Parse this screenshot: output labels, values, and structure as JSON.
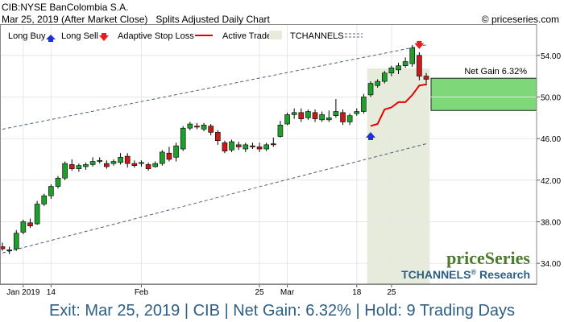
{
  "header": {
    "symbol_line": "CIB:NYSE BanColombia S.A.",
    "date_line": "Mar 25, 2019 (After Market Close)",
    "chart_kind": "Splits Adjusted Daily Chart",
    "copyright": "© priceseries.com"
  },
  "legend": {
    "long_buy": "Long Buy",
    "long_sell": "Long Sell",
    "adaptive_stop": "Adaptive Stop Loss",
    "active_trade": "Active Trade",
    "tchannels": "TCHANNELS"
  },
  "colors": {
    "up": "#1e9e2a",
    "down": "#c81a1a",
    "stop": "#e60000",
    "buy_arrow": "#1f2fd6",
    "sell_arrow": "#e02020",
    "trade_shade": "#e7ebdc",
    "gain_box": "#7ed87a",
    "channel": "#50607a",
    "footer": "#2d5f85",
    "brand_green": "#4a7c2c"
  },
  "gain_label": "Net Gain 6.32%",
  "watermark": {
    "brand": "priceSeries",
    "research_prefix": "TCHANNELS",
    "reg": "®",
    "research_suffix": " Research"
  },
  "footer": {
    "text": "Exit: Mar 25, 2019 | CIB | Net Gain: 6.32% | Hold: 9 Trading Days"
  },
  "chart_data": {
    "type": "candlestick",
    "ylim": [
      32.0,
      57.0
    ],
    "y_ticks": [
      34.0,
      38.0,
      42.0,
      46.0,
      50.0,
      54.0
    ],
    "y_tick_labels": [
      "34.00",
      "38.00",
      "42.00",
      "46.00",
      "50.00",
      "54.00"
    ],
    "x_ticks": [
      {
        "label": "Jan 2019",
        "index": 3
      },
      {
        "label": "14",
        "index": 7
      },
      {
        "label": "Feb",
        "index": 20
      },
      {
        "label": "25",
        "index": 37
      },
      {
        "label": "Mar",
        "index": 41
      },
      {
        "label": "18",
        "index": 51
      },
      {
        "label": "25",
        "index": 56
      }
    ],
    "candles": [
      {
        "o": 35.6,
        "h": 36.0,
        "l": 35.2,
        "c": 35.4
      },
      {
        "o": 35.2,
        "h": 35.6,
        "l": 34.9,
        "c": 35.3
      },
      {
        "o": 35.4,
        "h": 37.2,
        "l": 35.2,
        "c": 36.9
      },
      {
        "o": 37.0,
        "h": 38.2,
        "l": 36.8,
        "c": 38.0
      },
      {
        "o": 37.9,
        "h": 38.3,
        "l": 37.4,
        "c": 37.6
      },
      {
        "o": 37.8,
        "h": 40.0,
        "l": 37.7,
        "c": 39.7
      },
      {
        "o": 39.7,
        "h": 40.7,
        "l": 39.5,
        "c": 40.5
      },
      {
        "o": 40.5,
        "h": 41.6,
        "l": 40.2,
        "c": 41.4
      },
      {
        "o": 41.4,
        "h": 42.4,
        "l": 41.2,
        "c": 42.2
      },
      {
        "o": 42.2,
        "h": 43.8,
        "l": 42.0,
        "c": 43.6
      },
      {
        "o": 43.5,
        "h": 44.0,
        "l": 42.9,
        "c": 43.1
      },
      {
        "o": 43.1,
        "h": 43.6,
        "l": 42.8,
        "c": 43.4
      },
      {
        "o": 43.3,
        "h": 43.7,
        "l": 43.0,
        "c": 43.5
      },
      {
        "o": 43.5,
        "h": 44.2,
        "l": 43.3,
        "c": 43.8
      },
      {
        "o": 43.8,
        "h": 44.2,
        "l": 43.6,
        "c": 43.9
      },
      {
        "o": 43.6,
        "h": 43.9,
        "l": 43.1,
        "c": 43.3
      },
      {
        "o": 43.6,
        "h": 44.0,
        "l": 43.4,
        "c": 43.8
      },
      {
        "o": 43.7,
        "h": 44.6,
        "l": 43.5,
        "c": 44.2
      },
      {
        "o": 44.3,
        "h": 44.6,
        "l": 43.2,
        "c": 43.6
      },
      {
        "o": 43.6,
        "h": 43.9,
        "l": 43.2,
        "c": 43.4
      },
      {
        "o": 43.6,
        "h": 43.9,
        "l": 43.3,
        "c": 43.7
      },
      {
        "o": 43.5,
        "h": 43.7,
        "l": 42.9,
        "c": 43.1
      },
      {
        "o": 43.3,
        "h": 43.8,
        "l": 43.2,
        "c": 43.6
      },
      {
        "o": 43.6,
        "h": 44.9,
        "l": 43.4,
        "c": 44.7
      },
      {
        "o": 44.6,
        "h": 45.2,
        "l": 43.8,
        "c": 44.0
      },
      {
        "o": 44.2,
        "h": 45.6,
        "l": 43.8,
        "c": 45.3
      },
      {
        "o": 45.0,
        "h": 47.2,
        "l": 44.8,
        "c": 47.0
      },
      {
        "o": 47.0,
        "h": 47.6,
        "l": 46.8,
        "c": 47.4
      },
      {
        "o": 47.2,
        "h": 47.5,
        "l": 46.9,
        "c": 47.1
      },
      {
        "o": 46.9,
        "h": 47.5,
        "l": 46.7,
        "c": 47.3
      },
      {
        "o": 47.2,
        "h": 47.4,
        "l": 46.3,
        "c": 46.6
      },
      {
        "o": 46.6,
        "h": 46.8,
        "l": 45.4,
        "c": 45.8
      },
      {
        "o": 45.6,
        "h": 45.8,
        "l": 44.6,
        "c": 44.8
      },
      {
        "o": 44.9,
        "h": 45.9,
        "l": 44.7,
        "c": 45.7
      },
      {
        "o": 45.4,
        "h": 45.7,
        "l": 44.9,
        "c": 45.2
      },
      {
        "o": 45.0,
        "h": 45.6,
        "l": 44.7,
        "c": 45.4
      },
      {
        "o": 45.3,
        "h": 45.6,
        "l": 45.0,
        "c": 45.2
      },
      {
        "o": 45.2,
        "h": 45.6,
        "l": 44.7,
        "c": 45.0
      },
      {
        "o": 45.0,
        "h": 45.6,
        "l": 44.8,
        "c": 45.4
      },
      {
        "o": 45.5,
        "h": 46.1,
        "l": 45.2,
        "c": 45.4
      },
      {
        "o": 46.2,
        "h": 47.7,
        "l": 46.1,
        "c": 47.3
      },
      {
        "o": 47.4,
        "h": 48.5,
        "l": 47.3,
        "c": 48.3
      },
      {
        "o": 48.3,
        "h": 48.9,
        "l": 47.9,
        "c": 48.5
      },
      {
        "o": 48.5,
        "h": 48.9,
        "l": 47.6,
        "c": 47.9
      },
      {
        "o": 48.0,
        "h": 48.8,
        "l": 47.8,
        "c": 48.6
      },
      {
        "o": 48.5,
        "h": 48.8,
        "l": 47.6,
        "c": 47.9
      },
      {
        "o": 47.8,
        "h": 48.6,
        "l": 47.6,
        "c": 48.3
      },
      {
        "o": 47.8,
        "h": 48.7,
        "l": 47.6,
        "c": 48.0
      },
      {
        "o": 48.2,
        "h": 49.8,
        "l": 48.0,
        "c": 48.6
      },
      {
        "o": 48.5,
        "h": 48.8,
        "l": 47.3,
        "c": 47.6
      },
      {
        "o": 47.6,
        "h": 48.4,
        "l": 47.3,
        "c": 48.2
      },
      {
        "o": 48.4,
        "h": 48.9,
        "l": 48.2,
        "c": 48.6
      },
      {
        "o": 48.6,
        "h": 50.3,
        "l": 48.4,
        "c": 50.0
      },
      {
        "o": 50.2,
        "h": 51.5,
        "l": 50.0,
        "c": 51.3
      },
      {
        "o": 51.1,
        "h": 51.7,
        "l": 50.9,
        "c": 51.5
      },
      {
        "o": 51.5,
        "h": 52.5,
        "l": 51.3,
        "c": 52.3
      },
      {
        "o": 52.3,
        "h": 53.0,
        "l": 52.0,
        "c": 52.8
      },
      {
        "o": 52.6,
        "h": 53.3,
        "l": 52.2,
        "c": 53.0
      },
      {
        "o": 53.0,
        "h": 53.8,
        "l": 52.8,
        "c": 53.4
      },
      {
        "o": 53.2,
        "h": 55.0,
        "l": 52.9,
        "c": 54.7
      },
      {
        "o": 54.0,
        "h": 54.3,
        "l": 51.6,
        "c": 52.0
      },
      {
        "o": 52.0,
        "h": 52.3,
        "l": 51.1,
        "c": 51.7
      }
    ],
    "channel": {
      "upper": [
        [
          0,
          46.9
        ],
        [
          61,
          55.0
        ]
      ],
      "lower": [
        [
          0,
          35.0
        ],
        [
          61,
          45.5
        ]
      ]
    },
    "active_trade": {
      "start": 52.5,
      "end": 61.5
    },
    "stop_loss": [
      [
        53,
        47.2
      ],
      [
        54,
        47.4
      ],
      [
        55,
        48.8
      ],
      [
        56,
        49.0
      ],
      [
        57,
        49.5
      ],
      [
        58,
        49.5
      ],
      [
        59,
        50.2
      ],
      [
        60,
        51.1
      ],
      [
        61,
        51.2
      ]
    ],
    "long_buy": {
      "index": 53,
      "price": 46.4
    },
    "long_sell": {
      "index": 60,
      "price": 55.0
    },
    "gain_box": {
      "low": 48.7,
      "high": 51.8
    }
  }
}
